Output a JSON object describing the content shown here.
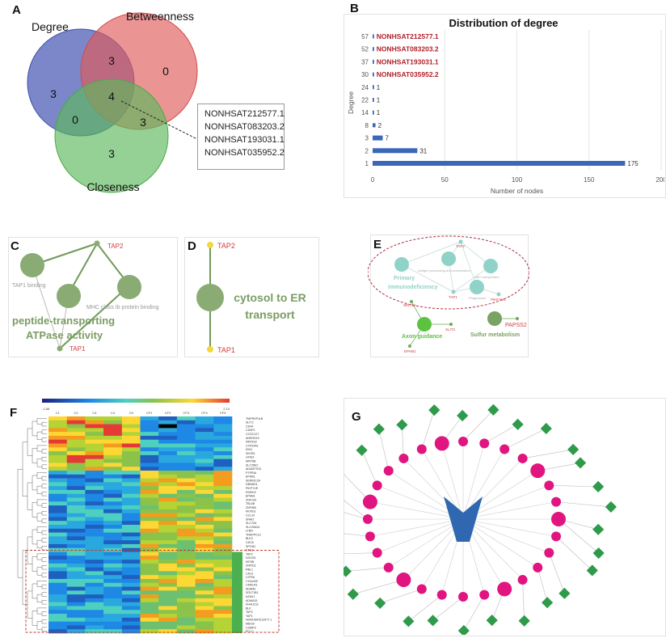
{
  "panels": {
    "a": "A",
    "b": "B",
    "c": "C",
    "d": "D",
    "e": "E",
    "f": "F",
    "g": "G"
  },
  "venn": {
    "sets": [
      "Degree",
      "Betweenness",
      "Closeness"
    ],
    "colors": [
      "#4f5fb5",
      "#e05a5a",
      "#5cb85c"
    ],
    "regions": {
      "degree_only": "3",
      "betweenness_only": "0",
      "closeness_only": "3",
      "degree_betweenness": "3",
      "degree_closeness": "0",
      "betweenness_closeness": "3",
      "all": "4"
    },
    "intersection_ids": [
      "NONHSAT212577.1",
      "NONHSAT083203.2",
      "NONHSAT193031.1",
      "NONHSAT035952.2"
    ]
  },
  "chart_data": {
    "type": "bar",
    "orientation": "horizontal",
    "title": "Distribution of degree",
    "xlabel": "Number of nodes",
    "ylabel": "Degree",
    "xlim": [
      0,
      200
    ],
    "xticks": [
      "0",
      "50",
      "100",
      "150",
      "200"
    ],
    "categories": [
      "57",
      "52",
      "37",
      "30",
      "24",
      "22",
      "14",
      "8",
      "3",
      "2",
      "1"
    ],
    "values": [
      1,
      1,
      1,
      1,
      1,
      1,
      1,
      2,
      7,
      31,
      175
    ],
    "data_labels": [
      "NONHSAT212577.1",
      "NONHSAT083203.2",
      "NONHSAT193031.1",
      "NONHSAT035952.2",
      "1",
      "1",
      "1",
      "2",
      "7",
      "31",
      "175"
    ],
    "highlight_color": "#b0202a",
    "bar_color": "#3a67b8",
    "grid": "vertical"
  },
  "panel_c": {
    "nodes": [
      "TAP2",
      "TAP1"
    ],
    "terms": [
      "TAP1 binding",
      "MHC class Ib protein binding"
    ],
    "main_term": [
      "peptide-transporting",
      "ATPase activity"
    ]
  },
  "panel_d": {
    "nodes": [
      "TAP2",
      "TAP1"
    ],
    "main_term": [
      "cytosol to ER",
      "transport"
    ]
  },
  "panel_e": {
    "genes": [
      "TAP2",
      "TAP1",
      "PIKFYVE",
      "WNT5A",
      "SLIT2",
      "EPHB1",
      "PAPSS2"
    ],
    "terms": [
      "Antigen processing and presentation",
      "ABC transporters",
      "Phagosome"
    ],
    "main_terms": [
      "Primary",
      "immunodeficiency",
      "Axon guidance",
      "Sulfur metabolism"
    ]
  },
  "heatmap": {
    "scale_min": "-1.88",
    "scale_max": "2.14",
    "columns": [
      "C1",
      "C2",
      "C3",
      "C4",
      "C5",
      "CF1",
      "CF2",
      "CF3",
      "CF4",
      "CF5"
    ],
    "genes": [
      "TMPRSP11B",
      "SLIT2",
      "CD44",
      "CASP1",
      "CCDC127",
      "ANKRD23",
      "PAPSS2",
      "CYP24A1",
      "IDH1",
      "SNTB1",
      "LRIG3",
      "WNT5B",
      "SLC35E2",
      "ADAMTS15",
      "PTPRIA",
      "EPHB1",
      "SERINC2A",
      "DBNDD1",
      "PIKFYVE",
      "ROBO3",
      "EPHB1",
      "ZNF143",
      "TBL4B",
      "ZNF560",
      "MOXD1",
      "CCL20",
      "SNAI2",
      "SLC7A5",
      "SLC25A24",
      "LTBR",
      "TRAPPC13",
      "BLK3",
      "CDC6",
      "SPON1",
      "ETS1",
      "TAP2",
      "DOCK5",
      "KIF5B",
      "ZNF511",
      "RBL1",
      "CA13",
      "LYPD6",
      "C15orf39",
      "CMKLR1",
      "ADAM2",
      "SOLT1B1",
      "AZML1",
      "ADAM15",
      "KIAA1211",
      "BLK",
      "TAP2",
      "TAP1",
      "NONHSAT212577.1",
      "MEIS9",
      "COMP2",
      "PCLC"
    ]
  },
  "network_g": {
    "hub_color": "#2f68b0",
    "mirna_color": "#e0157f",
    "target_color": "#2e9a4a"
  }
}
